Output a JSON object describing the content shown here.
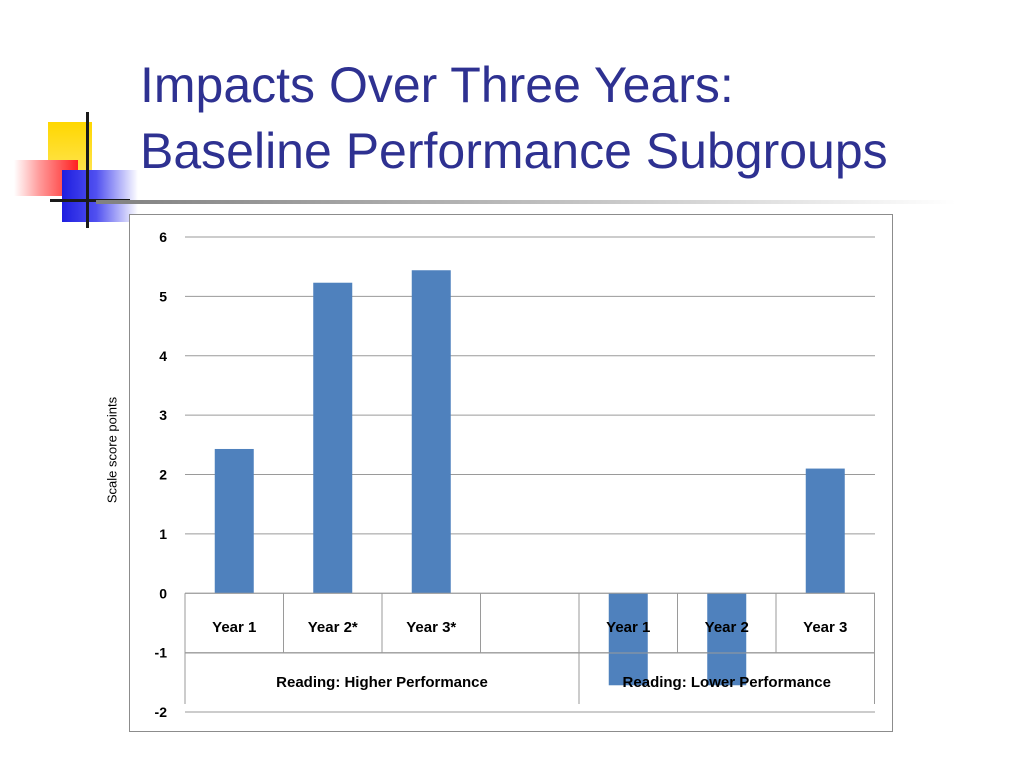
{
  "slide": {
    "title_lines": [
      "Impacts Over Three Years:",
      "Baseline Performance Subgroups"
    ],
    "title_color": "#2e3191"
  },
  "chart_data": {
    "type": "bar",
    "ylabel": "Scale score points",
    "ylim": [
      -2,
      6
    ],
    "yticks": [
      6,
      5,
      4,
      3,
      2,
      1,
      0,
      -1,
      -2
    ],
    "grid": true,
    "bar_color": "#4f81bd",
    "groups": [
      {
        "label": "Reading: Higher Performance",
        "categories": [
          "Year 1",
          "Year 2*",
          "Year 3*",
          ""
        ],
        "values": [
          2.43,
          5.23,
          5.44,
          null
        ]
      },
      {
        "label": "Reading: Lower Performance",
        "categories": [
          "Year 1",
          "Year 2",
          "Year 3"
        ],
        "values": [
          -1.55,
          -1.55,
          2.1
        ]
      }
    ]
  }
}
